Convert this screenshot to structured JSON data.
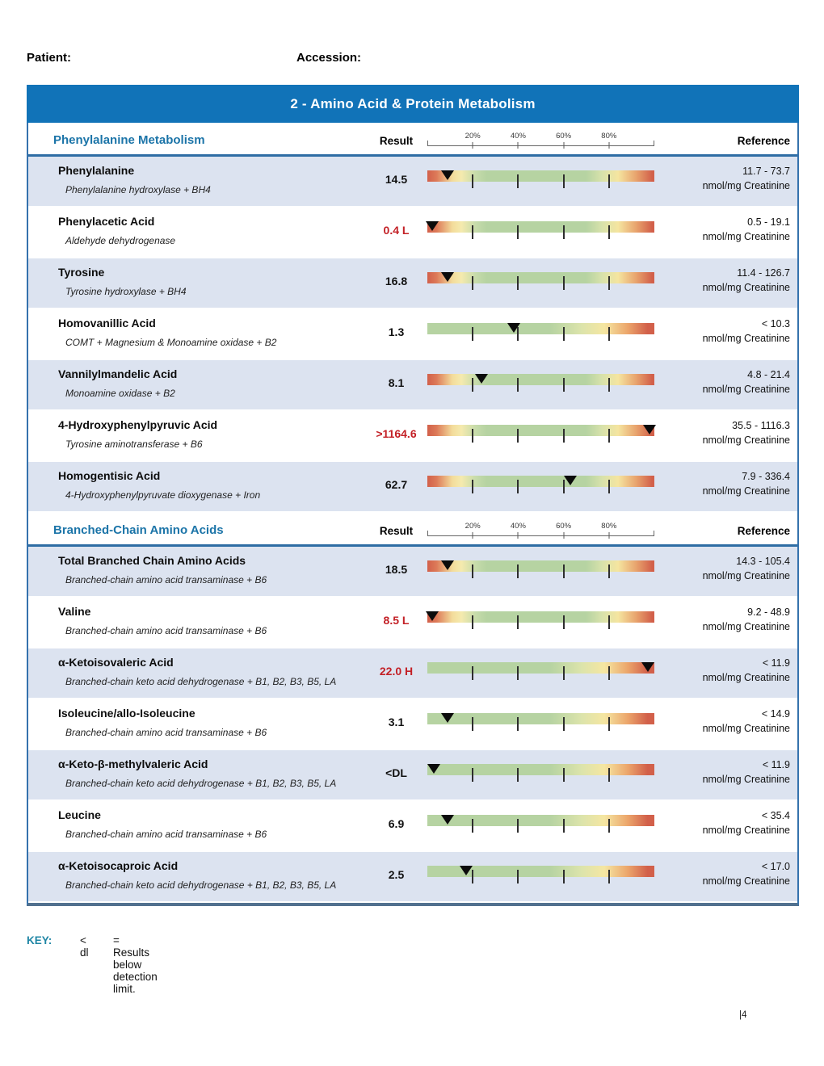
{
  "header": {
    "patient_label": "Patient:",
    "accession_label": "Accession:"
  },
  "report": {
    "title": "2 - Amino Acid & Protein Metabolism",
    "columns": {
      "result": "Result",
      "reference": "Reference"
    },
    "scale_ticks": [
      "20%",
      "40%",
      "60%",
      "80%"
    ],
    "sections": [
      {
        "title": "Phenylalanine Metabolism",
        "rows": [
          {
            "analyte": "Phenylalanine",
            "enzyme": "Phenylalanine hydroxylase + BH4",
            "result": "14.5",
            "abnormal": false,
            "bar_type": "range",
            "marker_pct": 9,
            "reference_range": "11.7 - 73.7",
            "reference_units": "nmol/mg Creatinine"
          },
          {
            "analyte": "Phenylacetic Acid",
            "enzyme": "Aldehyde dehydrogenase",
            "result": "0.4 L",
            "abnormal": true,
            "bar_type": "range",
            "marker_pct": 2,
            "reference_range": "0.5 - 19.1",
            "reference_units": "nmol/mg Creatinine"
          },
          {
            "analyte": "Tyrosine",
            "enzyme": "Tyrosine hydroxylase + BH4",
            "result": "16.8",
            "abnormal": false,
            "bar_type": "range",
            "marker_pct": 9,
            "reference_range": "11.4 - 126.7",
            "reference_units": "nmol/mg Creatinine"
          },
          {
            "analyte": "Homovanillic Acid",
            "enzyme": "COMT + Magnesium & Monoamine oxidase + B2",
            "result": "1.3",
            "abnormal": false,
            "bar_type": "upper",
            "marker_pct": 38,
            "reference_range": "< 10.3",
            "reference_units": "nmol/mg Creatinine"
          },
          {
            "analyte": "Vannilylmandelic Acid",
            "enzyme": "Monoamine oxidase + B2",
            "result": "8.1",
            "abnormal": false,
            "bar_type": "range",
            "marker_pct": 24,
            "reference_range": "4.8 - 21.4",
            "reference_units": "nmol/mg Creatinine"
          },
          {
            "analyte": "4-Hydroxyphenylpyruvic Acid",
            "enzyme": "Tyrosine aminotransferase + B6",
            "result": ">1164.6",
            "abnormal": true,
            "bar_type": "range",
            "marker_pct": 98,
            "reference_range": "35.5 - 1116.3",
            "reference_units": "nmol/mg Creatinine"
          },
          {
            "analyte": "Homogentisic Acid",
            "enzyme": "4-Hydroxyphenylpyruvate dioxygenase + Iron",
            "result": "62.7",
            "abnormal": false,
            "bar_type": "range",
            "marker_pct": 63,
            "reference_range": "7.9 - 336.4",
            "reference_units": "nmol/mg Creatinine"
          }
        ]
      },
      {
        "title": "Branched-Chain Amino Acids",
        "rows": [
          {
            "analyte": "Total Branched Chain Amino Acids",
            "enzyme": "Branched-chain amino acid transaminase + B6",
            "result": "18.5",
            "abnormal": false,
            "bar_type": "range",
            "marker_pct": 9,
            "reference_range": "14.3 - 105.4",
            "reference_units": "nmol/mg Creatinine"
          },
          {
            "analyte": "Valine",
            "enzyme": "Branched-chain amino acid transaminase + B6",
            "result": "8.5 L",
            "abnormal": true,
            "bar_type": "range",
            "marker_pct": 2,
            "reference_range": "9.2 - 48.9",
            "reference_units": "nmol/mg Creatinine"
          },
          {
            "analyte": "α-Ketoisovaleric Acid",
            "enzyme": "Branched-chain keto acid dehydrogenase + B1, B2, B3, B5, LA",
            "result": "22.0 H",
            "abnormal": true,
            "bar_type": "upper",
            "marker_pct": 97,
            "reference_range": "< 11.9",
            "reference_units": "nmol/mg Creatinine"
          },
          {
            "analyte": "Isoleucine/allo-Isoleucine",
            "enzyme": "Branched-chain amino acid transaminase + B6",
            "result": "3.1",
            "abnormal": false,
            "bar_type": "upper",
            "marker_pct": 9,
            "reference_range": "< 14.9",
            "reference_units": "nmol/mg Creatinine"
          },
          {
            "analyte": "α-Keto-β-methylvaleric Acid",
            "enzyme": "Branched-chain keto acid dehydrogenase + B1, B2, B3, B5, LA",
            "result": "<DL",
            "abnormal": false,
            "bar_type": "upper",
            "marker_pct": 3,
            "reference_range": "< 11.9",
            "reference_units": "nmol/mg Creatinine"
          },
          {
            "analyte": "Leucine",
            "enzyme": "Branched-chain amino acid transaminase + B6",
            "result": "6.9",
            "abnormal": false,
            "bar_type": "upper",
            "marker_pct": 9,
            "reference_range": "< 35.4",
            "reference_units": "nmol/mg Creatinine"
          },
          {
            "analyte": "α-Ketoisocaproic Acid",
            "enzyme": "Branched-chain keto acid dehydrogenase + B1, B2, B3, B5, LA",
            "result": "2.5",
            "abnormal": false,
            "bar_type": "upper",
            "marker_pct": 17,
            "reference_range": "< 17.0",
            "reference_units": "nmol/mg Creatinine"
          }
        ]
      }
    ]
  },
  "footer": {
    "key_label": "KEY:",
    "key_symbol": "< dl",
    "key_definition": "= Results below detection limit.",
    "page_number": "|4"
  },
  "colors": {
    "banner_blue": "#1173b8",
    "section_title_blue": "#1b74a8",
    "header_underline_blue": "#2e6da4",
    "table_border_blue": "#3572ad",
    "row_shade": "#dce3f0",
    "abnormal_red": "#c32026",
    "bar_green": "#b6d3a2",
    "bar_yellow": "#f5e6a2",
    "bar_red": "#d2604a"
  }
}
